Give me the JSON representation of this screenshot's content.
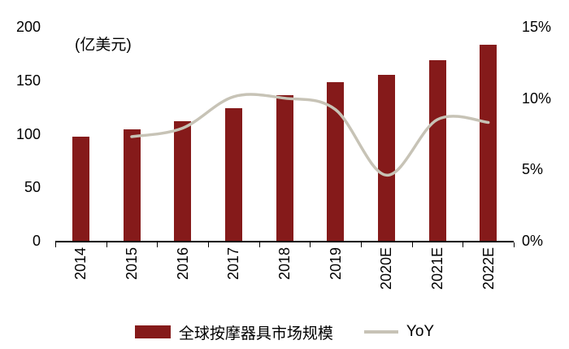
{
  "chart_data": {
    "type": "bar",
    "title": "",
    "categories": [
      "2014",
      "2015",
      "2016",
      "2017",
      "2018",
      "2019",
      "2020E",
      "2021E",
      "2022E"
    ],
    "series": [
      {
        "name": "全球按摩器具市场规模",
        "type": "bar",
        "axis": "left",
        "values": [
          97,
          104,
          112,
          124,
          136,
          148,
          155,
          169,
          183
        ]
      },
      {
        "name": "YoY",
        "type": "line",
        "axis": "right",
        "values": [
          null,
          7.3,
          7.9,
          10.1,
          10.0,
          9.2,
          4.6,
          8.5,
          8.3
        ]
      }
    ],
    "left_axis": {
      "unit_label": "(亿美元)",
      "ticks": [
        "0",
        "50",
        "100",
        "150",
        "200"
      ],
      "min": 0,
      "max": 200
    },
    "right_axis": {
      "ticks": [
        "0%",
        "5%",
        "10%",
        "15%"
      ],
      "min": 0,
      "max": 15
    },
    "colors": {
      "bar": "#851A1A",
      "line": "#C7C3B6"
    },
    "legend_position": "bottom",
    "grid": false
  }
}
